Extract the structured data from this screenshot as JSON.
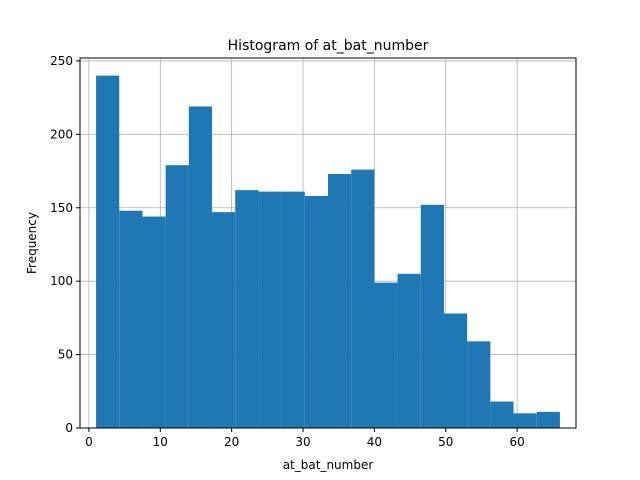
{
  "chart_data": {
    "type": "bar",
    "title": "Histogram of at_bat_number",
    "xlabel": "at_bat_number",
    "ylabel": "Frequency",
    "bin_edges": [
      1,
      4.25,
      7.5,
      10.75,
      14,
      17.25,
      20.5,
      23.75,
      27,
      30.25,
      33.5,
      36.75,
      40,
      43.25,
      46.5,
      49.75,
      53,
      56.25,
      59.5,
      62.75,
      66
    ],
    "values": [
      240,
      148,
      144,
      179,
      219,
      147,
      162,
      161,
      161,
      158,
      173,
      176,
      99,
      105,
      152,
      78,
      59,
      18,
      10,
      11
    ],
    "xlim": [
      -1.25,
      68.25
    ],
    "ylim": [
      0,
      252
    ],
    "xticks": [
      0,
      10,
      20,
      30,
      40,
      50,
      60
    ],
    "yticks": [
      0,
      50,
      100,
      150,
      200,
      250
    ],
    "grid": true,
    "bar_color": "#1f77b4",
    "grid_color": "#b0b0b0"
  }
}
